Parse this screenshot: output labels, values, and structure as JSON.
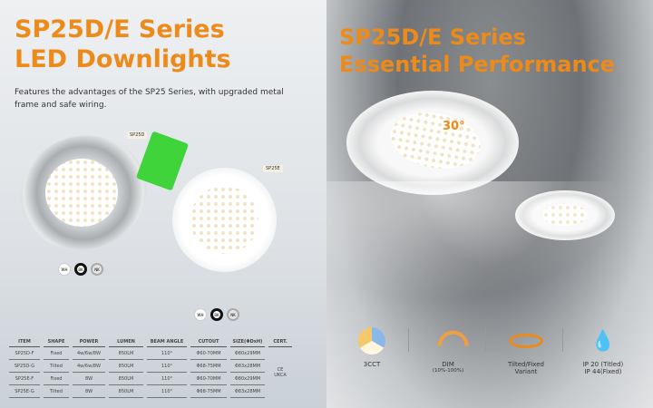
{
  "left": {
    "title_line1": "SP25D/E Series",
    "title_line2": "LED Downlights",
    "subtitle": "Features the advantages of the SP25 Series, with upgraded metal frame and safe wiring.",
    "product_tags": [
      "SP25D",
      "SP25E"
    ],
    "finish_swatches": [
      "WH",
      "BK",
      "NK"
    ],
    "table": {
      "headers": [
        "ITEM",
        "SHAPE",
        "POWER",
        "LUMEN",
        "BEAM ANGLE",
        "CUTOUT",
        "SIZE(ΦDxH)",
        "CERT."
      ],
      "rows": [
        [
          "SP25D-F",
          "Fixed",
          "4w/6w/8W",
          "850LM",
          "110°",
          "Φ60-70MM",
          "Φ80x29MM"
        ],
        [
          "SP25D-G",
          "Tilted",
          "4w/6w/8W",
          "850LM",
          "110°",
          "Φ68-75MM",
          "Φ83x28MM"
        ],
        [
          "SP25E-F",
          "Fixed",
          "8W",
          "850LM",
          "110°",
          "Φ60-70MM",
          "Φ80x29MM"
        ],
        [
          "SP25E-G",
          "Tilted",
          "8W",
          "850LM",
          "110°",
          "Φ68-75MM",
          "Φ83x28MM"
        ]
      ],
      "cert": [
        "CE",
        "UKCA"
      ]
    }
  },
  "right": {
    "title_line1": "SP25D/E Series",
    "title_line2": "Essential Performance",
    "tilt_angle": "30°",
    "features": [
      {
        "icon": "cct-icon",
        "label": "3CCT"
      },
      {
        "icon": "dimmer-icon",
        "label": "DIM",
        "note": "(10%-100%)"
      },
      {
        "icon": "rotate-icon",
        "label": "Tilted/Fixed",
        "note": "Variant"
      },
      {
        "icon": "water-drop-icon",
        "label": "IP 20 (Titled)",
        "note": "IP 44(Fixed)"
      }
    ]
  },
  "colors": {
    "accent": "#ec8a1a"
  }
}
